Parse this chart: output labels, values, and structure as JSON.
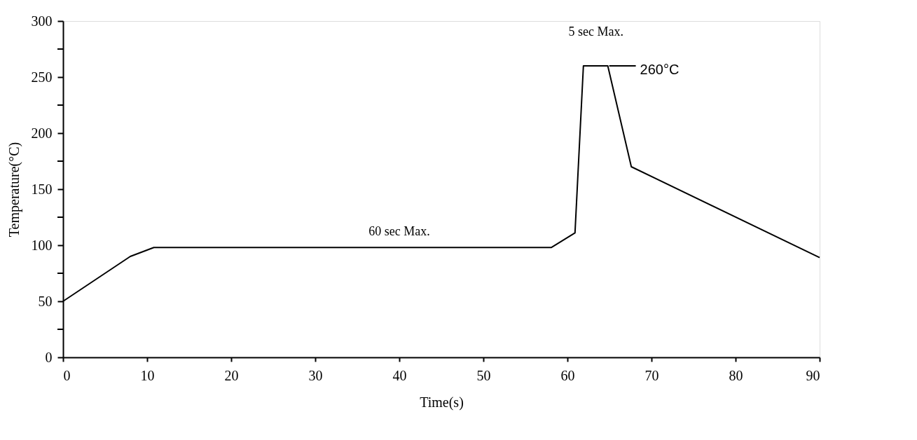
{
  "chart_data": {
    "type": "line",
    "xlabel": "Time(s)",
    "ylabel": "Temperature(°C)",
    "x": [
      0,
      8,
      10.8,
      58.1,
      60.9,
      61.9,
      64.8,
      67.6,
      90
    ],
    "series": [
      {
        "color": "#000000",
        "values": [
          50,
          90,
          98,
          98,
          111,
          260,
          260,
          170,
          89
        ]
      }
    ],
    "xlim": [
      0,
      90
    ],
    "xticks": [
      0,
      10,
      20,
      30,
      40,
      50,
      60,
      70,
      80,
      90
    ],
    "ylim": [
      0,
      300
    ],
    "yticks": [
      0,
      {
        "value": 25,
        "label": null
      },
      50,
      {
        "value": 75,
        "label": null
      },
      100,
      {
        "value": 125,
        "label": null
      },
      150,
      {
        "value": 175,
        "label": null
      },
      200,
      {
        "value": 225,
        "label": null
      },
      250,
      {
        "value": 275,
        "label": null
      },
      300
    ],
    "annotations": [
      {
        "text": "60 sec Max.",
        "x": 40,
        "y": 98
      },
      {
        "text": "5 sec Max.",
        "x": 63.4,
        "y": 260
      },
      {
        "text": "260°C",
        "x": 64.8,
        "y": 260
      }
    ],
    "grid": false,
    "marker": "none",
    "line_style": "solid"
  }
}
